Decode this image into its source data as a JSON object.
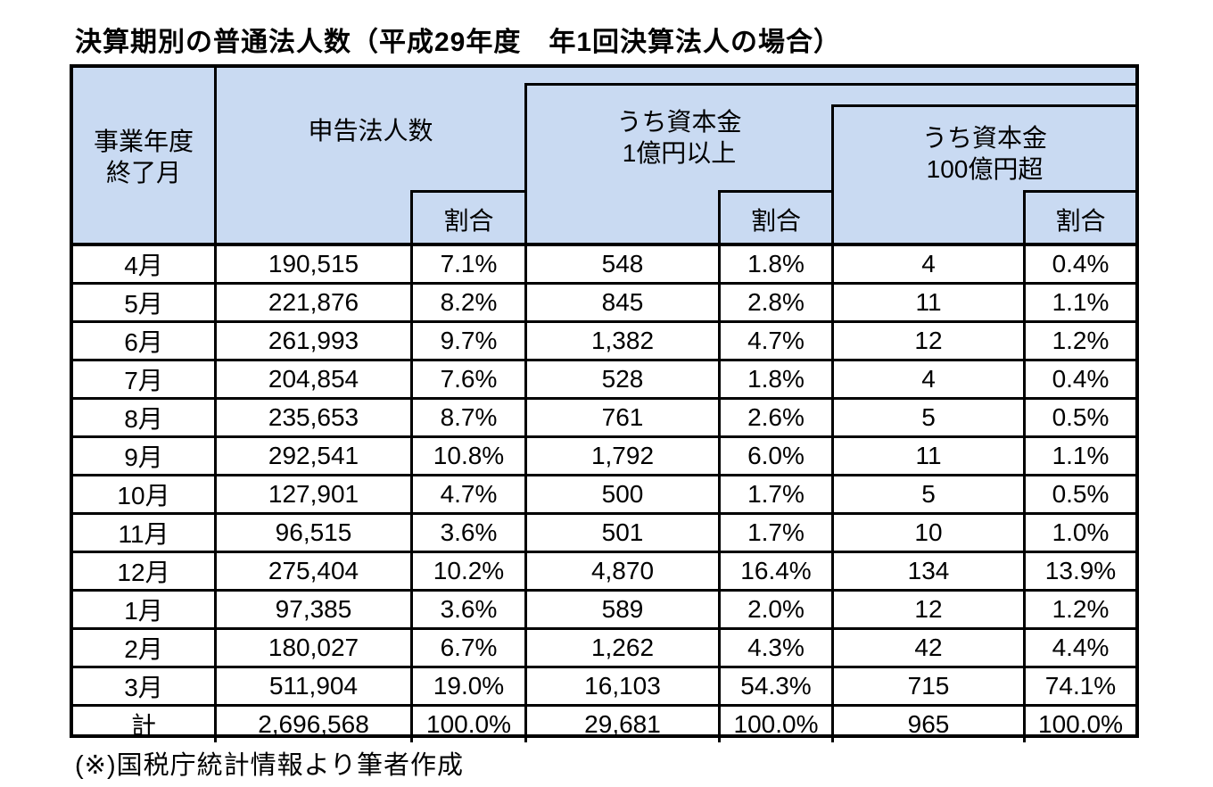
{
  "page_title": "決算期別の普通法人数（平成29年度　年1回決算法人の場合）",
  "source_note": "(※)国税庁統計情報より筆者作成",
  "colors": {
    "header_bg": "#C9DAF2",
    "border": "#000000",
    "background": "#FFFFFF",
    "text": "#000000"
  },
  "header": {
    "fiscal_month_line1": "事業年度",
    "fiscal_month_line2": "終了月",
    "filers": "申告法人数",
    "ratio": "割合",
    "capital_over_100m_line1": "うち資本金",
    "capital_over_100m_line2": "1億円以上",
    "capital_over_10b_line1": "うち資本金",
    "capital_over_10b_line2": "100億円超"
  },
  "chart_data": {
    "type": "table",
    "title": "決算期別の普通法人数（平成29年度　年1回決算法人の場合）",
    "columns": [
      "事業年度終了月",
      "申告法人数",
      "割合",
      "うち資本金1億円以上",
      "割合（うち資本金1億円以上）",
      "うち資本金100億円超",
      "割合（うち資本金100億円超）"
    ],
    "rows": [
      [
        "4月",
        "190,515",
        "7.1%",
        "548",
        "1.8%",
        "4",
        "0.4%"
      ],
      [
        "5月",
        "221,876",
        "8.2%",
        "845",
        "2.8%",
        "11",
        "1.1%"
      ],
      [
        "6月",
        "261,993",
        "9.7%",
        "1,382",
        "4.7%",
        "12",
        "1.2%"
      ],
      [
        "7月",
        "204,854",
        "7.6%",
        "528",
        "1.8%",
        "4",
        "0.4%"
      ],
      [
        "8月",
        "235,653",
        "8.7%",
        "761",
        "2.6%",
        "5",
        "0.5%"
      ],
      [
        "9月",
        "292,541",
        "10.8%",
        "1,792",
        "6.0%",
        "11",
        "1.1%"
      ],
      [
        "10月",
        "127,901",
        "4.7%",
        "500",
        "1.7%",
        "5",
        "0.5%"
      ],
      [
        "11月",
        "96,515",
        "3.6%",
        "501",
        "1.7%",
        "10",
        "1.0%"
      ],
      [
        "12月",
        "275,404",
        "10.2%",
        "4,870",
        "16.4%",
        "134",
        "13.9%"
      ],
      [
        "1月",
        "97,385",
        "3.6%",
        "589",
        "2.0%",
        "12",
        "1.2%"
      ],
      [
        "2月",
        "180,027",
        "6.7%",
        "1,262",
        "4.3%",
        "42",
        "4.4%"
      ],
      [
        "3月",
        "511,904",
        "19.0%",
        "16,103",
        "54.3%",
        "715",
        "74.1%"
      ],
      [
        "計",
        "2,696,568",
        "100.0%",
        "29,681",
        "100.0%",
        "965",
        "100.0%"
      ]
    ],
    "source_note": "(※)国税庁統計情報より筆者作成"
  }
}
